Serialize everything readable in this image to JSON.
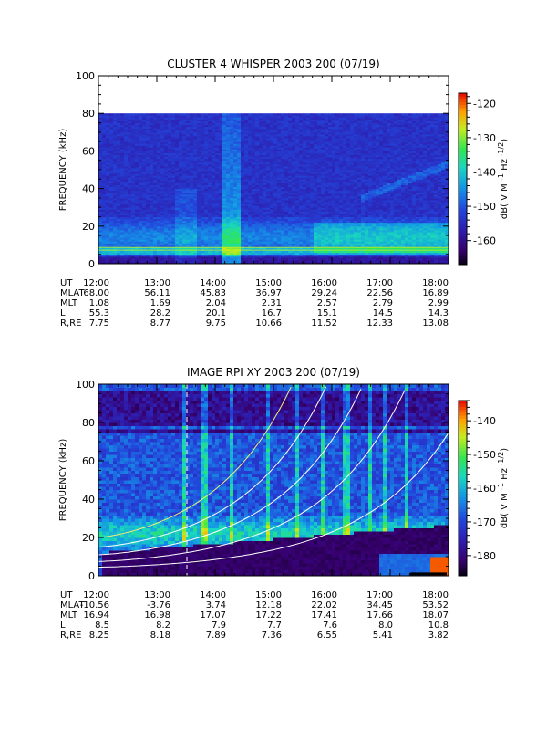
{
  "chart_data": [
    {
      "type": "heatmap",
      "title": "CLUSTER 4 WHISPER 2003 200 (07/19)",
      "ylabel": "FREQUENCY (kHz)",
      "ylim": [
        0,
        100
      ],
      "yticks": [
        "0",
        "20",
        "40",
        "60",
        "80",
        "100"
      ],
      "x_ticks_hours": [
        12,
        13,
        14,
        15,
        16,
        17,
        18
      ],
      "data_ceiling_khz": 80,
      "colorbar": {
        "label_main": "dB( V M",
        "label_sup1": "-1",
        "label_mid": "Hz",
        "label_sup2": "-1/2",
        "label_end": ")",
        "range": [
          -167,
          -117
        ],
        "ticks": [
          "-120",
          "-130",
          "-140",
          "-150",
          "-160"
        ],
        "tick_values": [
          -120,
          -130,
          -140,
          -150,
          -160
        ]
      },
      "table": {
        "labels": [
          "UT",
          "MLAT",
          "MLT",
          "L",
          "R,RE"
        ],
        "columns": [
          [
            "12:00",
            "68.00",
            "1.08",
            "55.3",
            "7.75"
          ],
          [
            "13:00",
            "56.11",
            "1.69",
            "28.2",
            "8.77"
          ],
          [
            "14:00",
            "45.83",
            "2.04",
            "20.1",
            "9.75"
          ],
          [
            "15:00",
            "36.97",
            "2.31",
            "16.7",
            "10.66"
          ],
          [
            "16:00",
            "29.24",
            "2.57",
            "15.1",
            "11.52"
          ],
          [
            "17:00",
            "22.56",
            "2.79",
            "14.5",
            "12.33"
          ],
          [
            "18:00",
            "16.89",
            "2.99",
            "14.3",
            "13.08"
          ]
        ]
      }
    },
    {
      "type": "heatmap",
      "title": "IMAGE RPI XY 2003 200 (07/19)",
      "ylabel": "FREQUENCY (kHz)",
      "ylim": [
        0,
        100
      ],
      "yticks": [
        "0",
        "20",
        "40",
        "60",
        "80",
        "100"
      ],
      "x_ticks_hours": [
        12,
        13,
        14,
        15,
        16,
        17,
        18
      ],
      "colorbar": {
        "label_main": "dB( V M",
        "label_sup1": "-1",
        "label_mid": "Hz",
        "label_sup2": "-1/2",
        "label_end": ")",
        "range": [
          -186,
          -134
        ],
        "ticks": [
          "-140",
          "-150",
          "-160",
          "-170",
          "-180"
        ],
        "tick_values": [
          -140,
          -150,
          -160,
          -170,
          -180
        ]
      },
      "table": {
        "labels": [
          "UT",
          "MLAT",
          "MLT",
          "L",
          "R,RE"
        ],
        "columns": [
          [
            "12:00",
            "-10.56",
            "16.94",
            "8.5",
            "8.25"
          ],
          [
            "13:00",
            "-3.76",
            "16.98",
            "8.2",
            "8.18"
          ],
          [
            "14:00",
            "3.74",
            "17.07",
            "7.9",
            "7.89"
          ],
          [
            "15:00",
            "12.18",
            "17.22",
            "7.7",
            "7.36"
          ],
          [
            "16:00",
            "22.02",
            "17.41",
            "7.6",
            "6.55"
          ],
          [
            "17:00",
            "34.45",
            "17.66",
            "8.0",
            "5.41"
          ],
          [
            "18:00",
            "53.52",
            "18.07",
            "10.8",
            "3.82"
          ]
        ]
      }
    }
  ]
}
